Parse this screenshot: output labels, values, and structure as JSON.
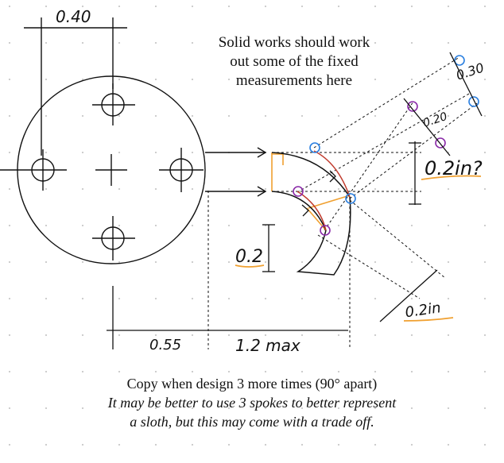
{
  "dimensions": {
    "top_width": "0.40",
    "spacing_a": "0.30",
    "spacing_b": "0.20",
    "right_height": "0.2in?",
    "curve_height": "0.2",
    "diag_length": "0.2in",
    "bottom_left": "0.55",
    "bottom_right": "1.2 max"
  },
  "note": {
    "lines": [
      "Solid works should work",
      "out some of the fixed",
      "measurements here"
    ]
  },
  "captions": {
    "line1": "Copy when design 3 more times (90° apart)",
    "line2": "It may be better to use 3 spokes to better represent",
    "line3": "a sloth, but this may come with a trade off."
  },
  "colors": {
    "ink": "#111111",
    "blue_marker": "#2a7fe0",
    "purple_marker": "#8a2aa8",
    "orange_guide": "#f0a030",
    "red_curve": "#c0392b",
    "grid_dot": "#c9c9c9"
  }
}
